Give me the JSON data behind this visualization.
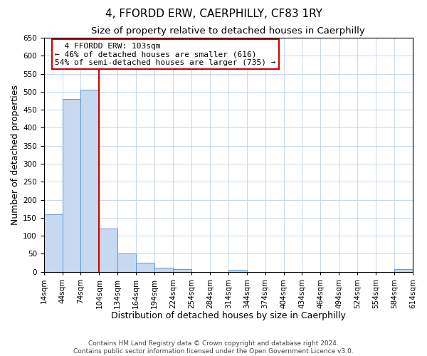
{
  "title": "4, FFORDD ERW, CAERPHILLY, CF83 1RY",
  "subtitle": "Size of property relative to detached houses in Caerphilly",
  "xlabel": "Distribution of detached houses by size in Caerphilly",
  "ylabel": "Number of detached properties",
  "bin_edges": [
    14,
    44,
    74,
    104,
    134,
    164,
    194,
    224,
    254,
    284,
    314,
    344,
    374,
    404,
    434,
    464,
    494,
    524,
    554,
    584,
    614
  ],
  "counts": [
    160,
    480,
    505,
    120,
    50,
    25,
    12,
    7,
    0,
    0,
    5,
    0,
    0,
    0,
    0,
    0,
    0,
    0,
    0,
    7
  ],
  "bar_color": "#c6d9f0",
  "bar_edge_color": "#5a9bd5",
  "vline_x": 103,
  "vline_color": "#cc0000",
  "ylim": [
    0,
    650
  ],
  "yticks": [
    0,
    50,
    100,
    150,
    200,
    250,
    300,
    350,
    400,
    450,
    500,
    550,
    600,
    650
  ],
  "annotation_title": "4 FFORDD ERW: 103sqm",
  "annotation_line1": "← 46% of detached houses are smaller (616)",
  "annotation_line2": "54% of semi-detached houses are larger (735) →",
  "annotation_box_color": "#ffffff",
  "annotation_box_edge": "#cc0000",
  "footer1": "Contains HM Land Registry data © Crown copyright and database right 2024.",
  "footer2": "Contains public sector information licensed under the Open Government Licence v3.0.",
  "title_fontsize": 11,
  "subtitle_fontsize": 9.5,
  "axis_label_fontsize": 9,
  "tick_fontsize": 7.5,
  "annotation_fontsize": 8,
  "footer_fontsize": 6.5,
  "grid_color": "#c8d8e8",
  "background_color": "#ffffff"
}
